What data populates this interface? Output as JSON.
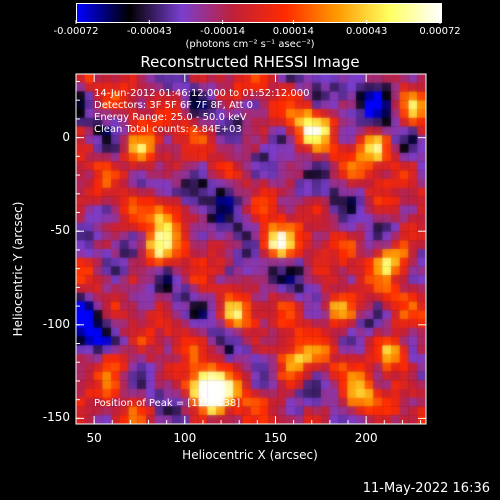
{
  "page": {
    "title": "Reconstructed RHESSI Image",
    "footer_date": "11-May-2022 16:36"
  },
  "info": {
    "time_range": "14-Jun-2012 01:46:12.000 to 01:52:12.000",
    "detectors": "Detectors: 3F 5F 6F 7F 8F, Att 0",
    "energy": "Energy Range: 25.0 - 50.0 keV",
    "clean": "Clean    Total counts: 2.84E+03",
    "peak": "Position of Peak = [115,-138]"
  },
  "colorbar": {
    "min": -0.00072,
    "max": 0.00072,
    "tick_labels": [
      "-0.00072",
      "-0.00043",
      "-0.00014",
      "0.00014",
      "0.00043",
      "0.00072"
    ],
    "unit_label": "(photons cm⁻² s⁻¹ asec⁻²)",
    "colors": [
      "#0000ff",
      "#000000",
      "#7a3fd0",
      "#c0203a",
      "#ff2a00",
      "#ff9a00",
      "#ffff60",
      "#ffffff"
    ]
  },
  "chart_data": {
    "type": "heatmap",
    "title": "Reconstructed RHESSI Image",
    "xlabel": "Heliocentric X (arcsec)",
    "ylabel": "Heliocentric Y (arcsec)",
    "xlim": [
      40,
      233
    ],
    "ylim": [
      -153,
      34
    ],
    "x_ticks": [
      50,
      100,
      150,
      200
    ],
    "y_ticks": [
      0,
      -50,
      -100,
      -150
    ],
    "colormap": "rainbow-like (blue-black-purple-red-orange-yellow-white)",
    "peak_position": [
      115,
      -138
    ],
    "bright_sources": [
      {
        "x": 150,
        "y": -57,
        "level": 0.95
      },
      {
        "x": 110,
        "y": -133,
        "level": 1.0
      },
      {
        "x": 118,
        "y": -140,
        "level": 0.95
      },
      {
        "x": 215,
        "y": -65,
        "level": 0.85
      },
      {
        "x": 75,
        "y": -8,
        "level": 0.8
      },
      {
        "x": 170,
        "y": 5,
        "level": 0.7
      },
      {
        "x": 205,
        "y": -5,
        "level": 0.75
      },
      {
        "x": 215,
        "y": -115,
        "level": 0.8
      },
      {
        "x": 160,
        "y": -120,
        "level": 0.75
      },
      {
        "x": 85,
        "y": -60,
        "level": 0.7
      },
      {
        "x": 225,
        "y": 15,
        "level": 0.6
      },
      {
        "x": 130,
        "y": -95,
        "level": 0.65
      },
      {
        "x": 185,
        "y": -90,
        "level": 0.7
      },
      {
        "x": 60,
        "y": -120,
        "level": 0.55
      },
      {
        "x": 90,
        "y": -40,
        "level": 0.6
      },
      {
        "x": 195,
        "y": -140,
        "level": 0.6
      }
    ],
    "dark_regions": [
      {
        "x": 210,
        "y": 20,
        "level": -0.5
      },
      {
        "x": 45,
        "y": -100,
        "level": -0.6
      },
      {
        "x": 120,
        "y": -30,
        "level": -0.3
      },
      {
        "x": 140,
        "y": -75,
        "level": -0.25
      }
    ]
  }
}
